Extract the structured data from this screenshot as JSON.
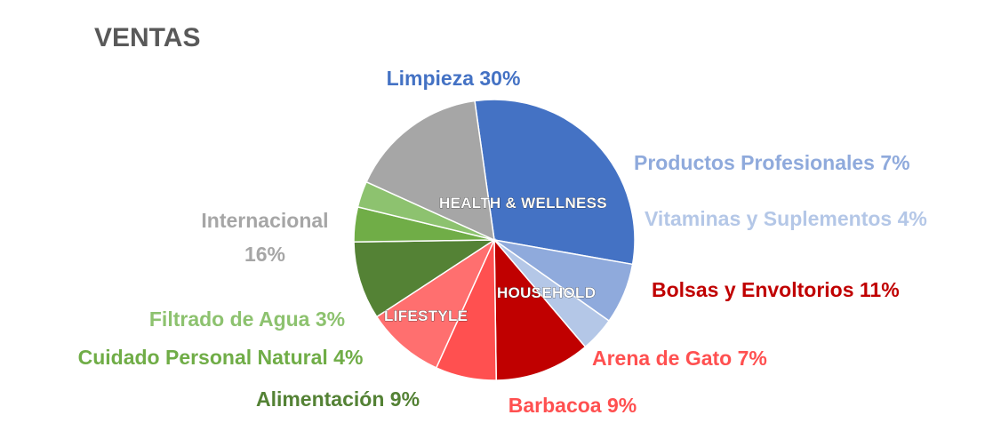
{
  "chart_data": {
    "type": "pie",
    "title": "VENTAS",
    "slices": [
      {
        "category": "Limpieza",
        "pct_label": "30%",
        "value": 30,
        "color": "#4472C4",
        "text_color": "#4472C4"
      },
      {
        "category": "Productos Profesionales",
        "pct_label": "7%",
        "value": 7,
        "color": "#8FAADC",
        "text_color": "#8FAADC"
      },
      {
        "category": "Vitaminas y Suplementos",
        "pct_label": "4%",
        "value": 4,
        "color": "#B4C7E7",
        "text_color": "#B4C7E7"
      },
      {
        "category": "Bolsas y Envoltorios",
        "pct_label": "11%",
        "value": 11,
        "color": "#C00000",
        "text_color": "#C00000"
      },
      {
        "category": "Arena de Gato",
        "pct_label": "7%",
        "value": 7,
        "color": "#FF5050",
        "text_color": "#FF5050"
      },
      {
        "category": "Barbacoa",
        "pct_label": "9%",
        "value": 9,
        "color": "#FF6F6F",
        "text_color": "#FF5050"
      },
      {
        "category": "Alimentación",
        "pct_label": "9%",
        "value": 9,
        "color": "#548235",
        "text_color": "#548235"
      },
      {
        "category": "Cuidado Personal Natural",
        "pct_label": "4%",
        "value": 4,
        "color": "#70AD47",
        "text_color": "#70AD47"
      },
      {
        "category": "Filtrado de Agua",
        "pct_label": "3%",
        "value": 3,
        "color": "#8DC26F",
        "text_color": "#8DC26F"
      },
      {
        "category": "Internacional",
        "pct_label": "16%",
        "value": 16,
        "color": "#A6A6A6",
        "text_color": "#A6A6A6"
      }
    ],
    "groups": [
      {
        "label": "HEALTH & WELLNESS"
      },
      {
        "label": "HOUSEHOLD"
      },
      {
        "label": "LIFESTYLE"
      }
    ]
  }
}
